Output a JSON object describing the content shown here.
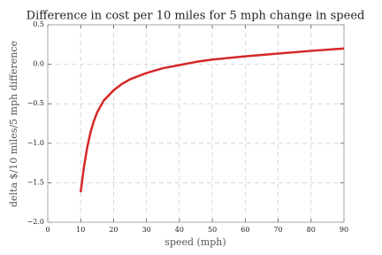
{
  "chart_data": {
    "type": "line",
    "title": "Difference in cost per 10 miles for 5 mph change in speed",
    "x_label": "speed (mph)",
    "y_label": "delta $/10 miles/5 mph difference",
    "x": [
      10,
      11,
      12,
      13,
      14,
      15,
      17,
      20,
      22.5,
      25,
      30,
      35,
      40,
      45,
      50,
      60,
      70,
      80,
      90
    ],
    "series": [
      {
        "color": "#d62728",
        "values": [
          -1.62,
          -1.3,
          -1.05,
          -0.86,
          -0.72,
          -0.61,
          -0.46,
          -0.33,
          -0.25,
          -0.19,
          -0.11,
          -0.05,
          -0.01,
          0.03,
          0.06,
          0.1,
          0.135,
          0.17,
          0.2
        ]
      }
    ],
    "xlim": [
      0,
      90
    ],
    "xticks": [
      0,
      10,
      20,
      30,
      40,
      50,
      60,
      70,
      80,
      90
    ],
    "ylim": [
      -2.0,
      0.5
    ],
    "yticks": [
      0.5,
      {
        "value": 0.0,
        "label": "0.0"
      },
      {
        "value": -0.5,
        "label": "−0.5"
      },
      {
        "value": -1.0,
        "label": "−1.0"
      },
      {
        "value": -1.5,
        "label": "−1.5"
      },
      {
        "value": -2.0,
        "label": "−2.0"
      }
    ],
    "grid": true
  }
}
